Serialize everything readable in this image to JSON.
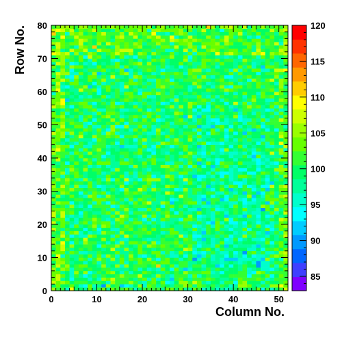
{
  "chart_data": {
    "type": "heatmap",
    "title": "",
    "xlabel": "Column No.",
    "ylabel": "Row No.",
    "xlim": [
      0,
      52
    ],
    "ylim": [
      0,
      80
    ],
    "n_columns": 52,
    "n_rows": 80,
    "x_ticks": [
      0,
      10,
      20,
      30,
      40,
      50
    ],
    "y_ticks": [
      0,
      10,
      20,
      30,
      40,
      50,
      60,
      70,
      80
    ],
    "x_tick_labels": [
      "0",
      "10",
      "20",
      "30",
      "40",
      "50"
    ],
    "y_tick_labels": [
      "0",
      "10",
      "20",
      "30",
      "40",
      "50",
      "60",
      "70",
      "80"
    ],
    "color_range": [
      83,
      120
    ],
    "colorbar_ticks": [
      85,
      90,
      95,
      100,
      105,
      110,
      115,
      120
    ],
    "colorbar_tick_labels": [
      "85",
      "90",
      "95",
      "100",
      "105",
      "110",
      "115",
      "120"
    ],
    "colorbar_colors": [
      "#7f00ff",
      "#3f3fff",
      "#0066ff",
      "#0099ff",
      "#00ccff",
      "#00ffff",
      "#00ffcc",
      "#00ff99",
      "#00ff66",
      "#33ff33",
      "#66ff00",
      "#99ff00",
      "#ccff00",
      "#ffff00",
      "#ffcc00",
      "#ff9900",
      "#ff6600",
      "#ff3300",
      "#ff0000"
    ],
    "value_distribution": {
      "mean": 100,
      "typical_spread": 4
    },
    "grid": false,
    "legend": "colorbar-right"
  }
}
